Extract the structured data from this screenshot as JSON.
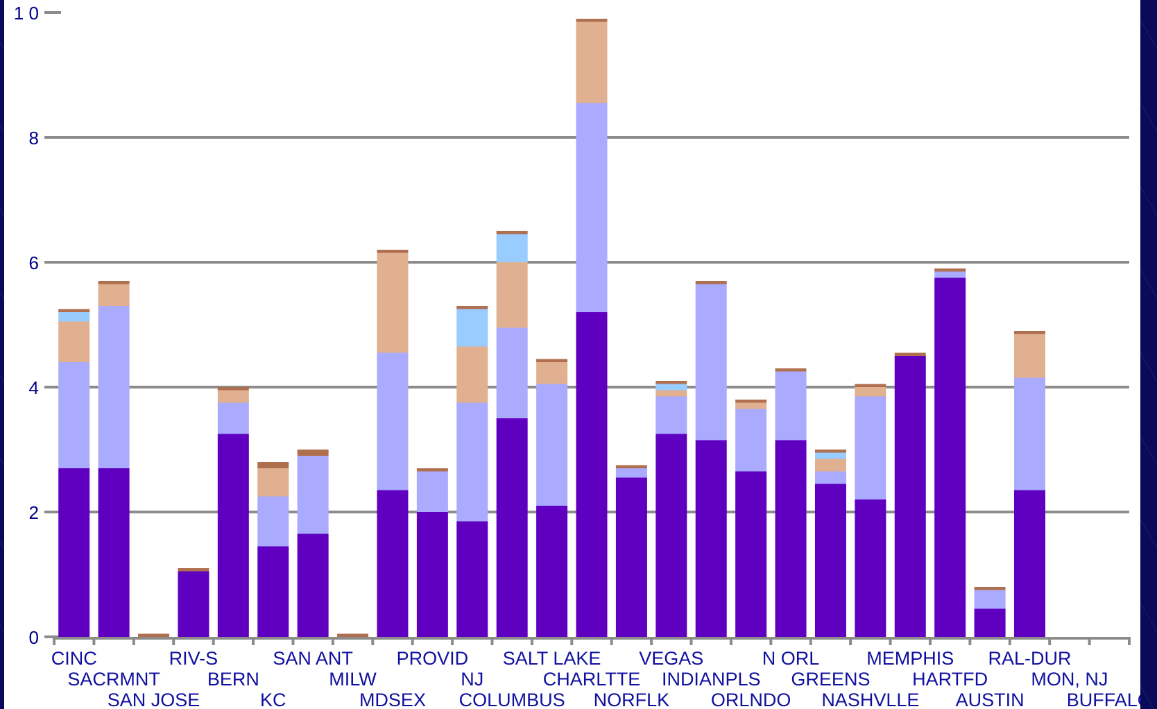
{
  "chart_data": {
    "type": "bar",
    "stacked": true,
    "ylim": [
      0,
      10
    ],
    "yticks": [
      0,
      2,
      4,
      6,
      8,
      10
    ],
    "ytick_labels": [
      "0",
      "2",
      "4",
      "6",
      "8",
      "1 0"
    ],
    "grid": true,
    "legend": "none",
    "categories": [
      "CINC",
      "SACRMNT",
      "SAN JOSE",
      "RIV-S",
      "BERN",
      "KC",
      "SAN ANT",
      "MILW",
      "MDSEX",
      "PROVID",
      "NJ",
      "COLUMBUS",
      "SALT LAKE",
      "CHARLTTE",
      "NORFLK",
      "VEGAS",
      "INDIANPLS",
      "ORLNDO",
      "N ORL",
      "GREENS",
      "NASHVLLE",
      "MEMPHIS",
      "HARTFD",
      "AUSTIN",
      "RAL-DUR",
      "MON, NJ",
      "BUFFALO"
    ],
    "colors": [
      "#5f00c0",
      "#aaaaff",
      "#e0b090",
      "#99ccff",
      "#b07050"
    ],
    "series": [
      {
        "values": [
          2.7,
          2.7,
          0,
          1.05,
          3.25,
          1.45,
          1.65,
          0,
          2.35,
          2.0,
          1.85,
          3.5,
          2.1,
          5.2,
          2.55,
          3.25,
          3.15,
          2.65,
          3.15,
          2.45,
          2.2,
          4.5,
          5.75,
          0.45,
          2.35,
          0,
          0
        ]
      },
      {
        "values": [
          1.7,
          2.6,
          0,
          0,
          0.5,
          0.8,
          1.25,
          0,
          2.2,
          0.65,
          1.9,
          1.45,
          1.95,
          3.35,
          0.15,
          0.6,
          2.5,
          1.0,
          1.1,
          0.2,
          1.65,
          0,
          0.1,
          0.3,
          1.8,
          0,
          0
        ]
      },
      {
        "values": [
          0.65,
          0.35,
          0,
          0,
          0.2,
          0.45,
          0,
          0,
          1.6,
          0,
          0.9,
          1.05,
          0.35,
          1.3,
          0,
          0.1,
          0,
          0.1,
          0,
          0.2,
          0.15,
          0,
          0,
          0,
          0.7,
          0,
          0
        ]
      },
      {
        "values": [
          0.15,
          0,
          0,
          0,
          0,
          0,
          0,
          0,
          0,
          0,
          0.6,
          0.45,
          0,
          0,
          0,
          0.1,
          0,
          0,
          0,
          0.1,
          0,
          0,
          0,
          0,
          0,
          0,
          0
        ]
      },
      {
        "values": [
          0.05,
          0.05,
          0.05,
          0.05,
          0.05,
          0.1,
          0.1,
          0.05,
          0.05,
          0.05,
          0.05,
          0.05,
          0.05,
          0.05,
          0.05,
          0.05,
          0.05,
          0.05,
          0.05,
          0.05,
          0.05,
          0.05,
          0.05,
          0.05,
          0.05,
          0,
          0
        ]
      }
    ],
    "purple_top_segment": {
      "category": "SALT LAKE",
      "value": 0.1
    }
  }
}
